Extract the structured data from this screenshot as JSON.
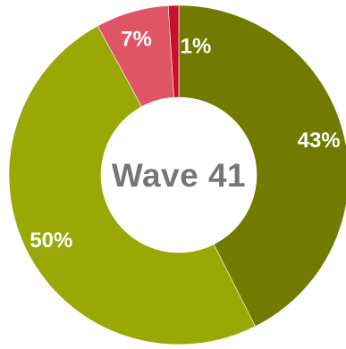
{
  "chart_data": {
    "type": "pie",
    "donut": true,
    "center_label": "Wave 41",
    "categories": [
      "",
      "",
      "",
      ""
    ],
    "values": [
      43,
      50,
      7,
      1
    ],
    "labels": [
      "43%",
      "50%",
      "7%",
      "1%"
    ],
    "colors": [
      "#737a00",
      "#9aa806",
      "#e05565",
      "#c8102e"
    ],
    "legend": "none",
    "title": ""
  }
}
